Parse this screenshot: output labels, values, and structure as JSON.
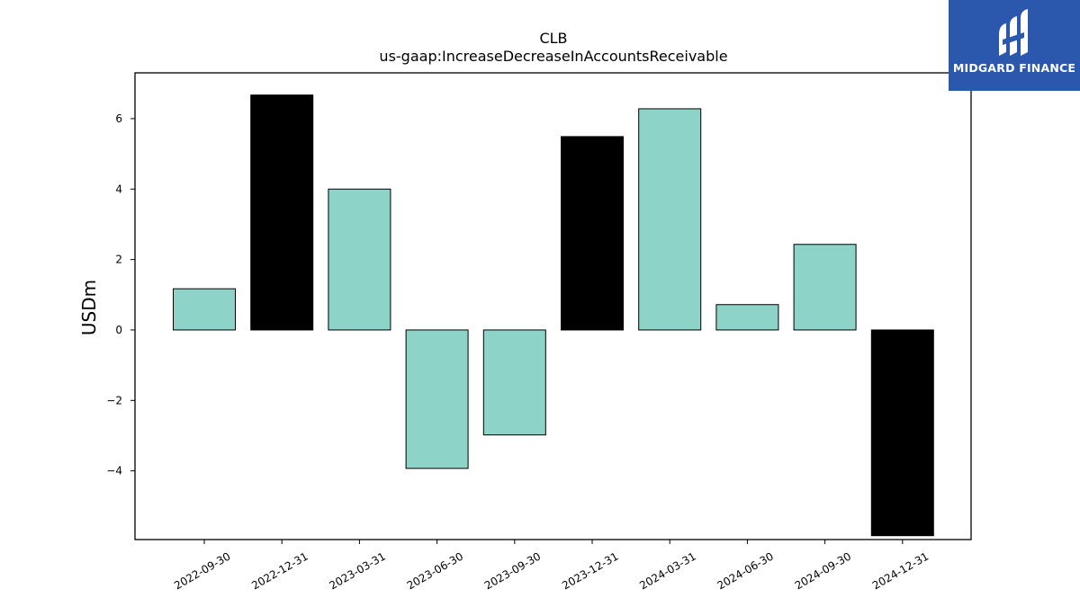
{
  "chart_data": {
    "type": "bar",
    "title": "CLB",
    "subtitle": "us-gaap:IncreaseDecreaseInAccountsReceivable",
    "xlabel": "",
    "ylabel": "USDm",
    "categories": [
      "2022-09-30",
      "2022-12-31",
      "2023-03-31",
      "2023-06-30",
      "2023-09-30",
      "2023-12-31",
      "2024-03-31",
      "2024-06-30",
      "2024-09-30",
      "2024-12-31"
    ],
    "values": [
      1.17,
      6.67,
      4.0,
      -3.93,
      -2.98,
      5.49,
      6.28,
      0.72,
      2.43,
      -5.84
    ],
    "bar_colors": [
      "#8dd3c7",
      "#000000",
      "#8dd3c7",
      "#8dd3c7",
      "#8dd3c7",
      "#000000",
      "#8dd3c7",
      "#8dd3c7",
      "#8dd3c7",
      "#000000"
    ],
    "ylim": [
      -5.95,
      7.3
    ],
    "yticks": [
      -4,
      -2,
      0,
      2,
      4,
      6
    ],
    "ytick_labels": [
      "−4",
      "−2",
      "0",
      "2",
      "4",
      "6"
    ],
    "grid": false,
    "legend": "none"
  },
  "logo": {
    "text": "MIDGARD FINANCE",
    "background": "#2b58ac"
  }
}
